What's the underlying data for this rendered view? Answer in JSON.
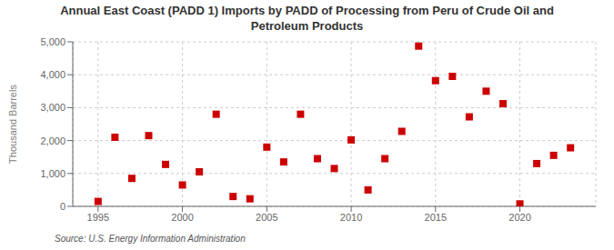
{
  "chart_data": {
    "type": "scatter",
    "title": "Annual East Coast (PADD 1) Imports by PADD of Processing from Peru of Crude Oil and\nPetroleum Products",
    "ylabel": "Thousand Barrels",
    "annotations": [
      "Source: U.S. Energy Information Administration"
    ],
    "x": [
      1995,
      1996,
      1997,
      1998,
      1999,
      2000,
      2001,
      2002,
      2003,
      2004,
      2005,
      2006,
      2007,
      2008,
      2009,
      2010,
      2011,
      2012,
      2013,
      2014,
      2015,
      2016,
      2017,
      2018,
      2019,
      2020,
      2021,
      2022,
      2023
    ],
    "values": [
      150,
      2100,
      850,
      2150,
      1275,
      650,
      1050,
      2800,
      300,
      230,
      1800,
      1350,
      2800,
      1450,
      1150,
      2020,
      500,
      1450,
      2280,
      4870,
      3820,
      3950,
      2720,
      3500,
      3120,
      75,
      1300,
      1550,
      1780
    ],
    "color": "#cc0000",
    "marker": "square",
    "xlim": [
      1993.5,
      2024.5
    ],
    "ylim": [
      0,
      5000
    ],
    "xticks": [
      1995,
      2000,
      2005,
      2010,
      2015,
      2020
    ],
    "yticks": [
      0,
      {
        "value": 1000,
        "label": "1,000"
      },
      {
        "value": 2000,
        "label": "2,000"
      },
      {
        "value": 3000,
        "label": "3,000"
      },
      {
        "value": 4000,
        "label": "4,000"
      },
      {
        "value": 5000,
        "label": "5,000"
      }
    ],
    "grid": true
  }
}
